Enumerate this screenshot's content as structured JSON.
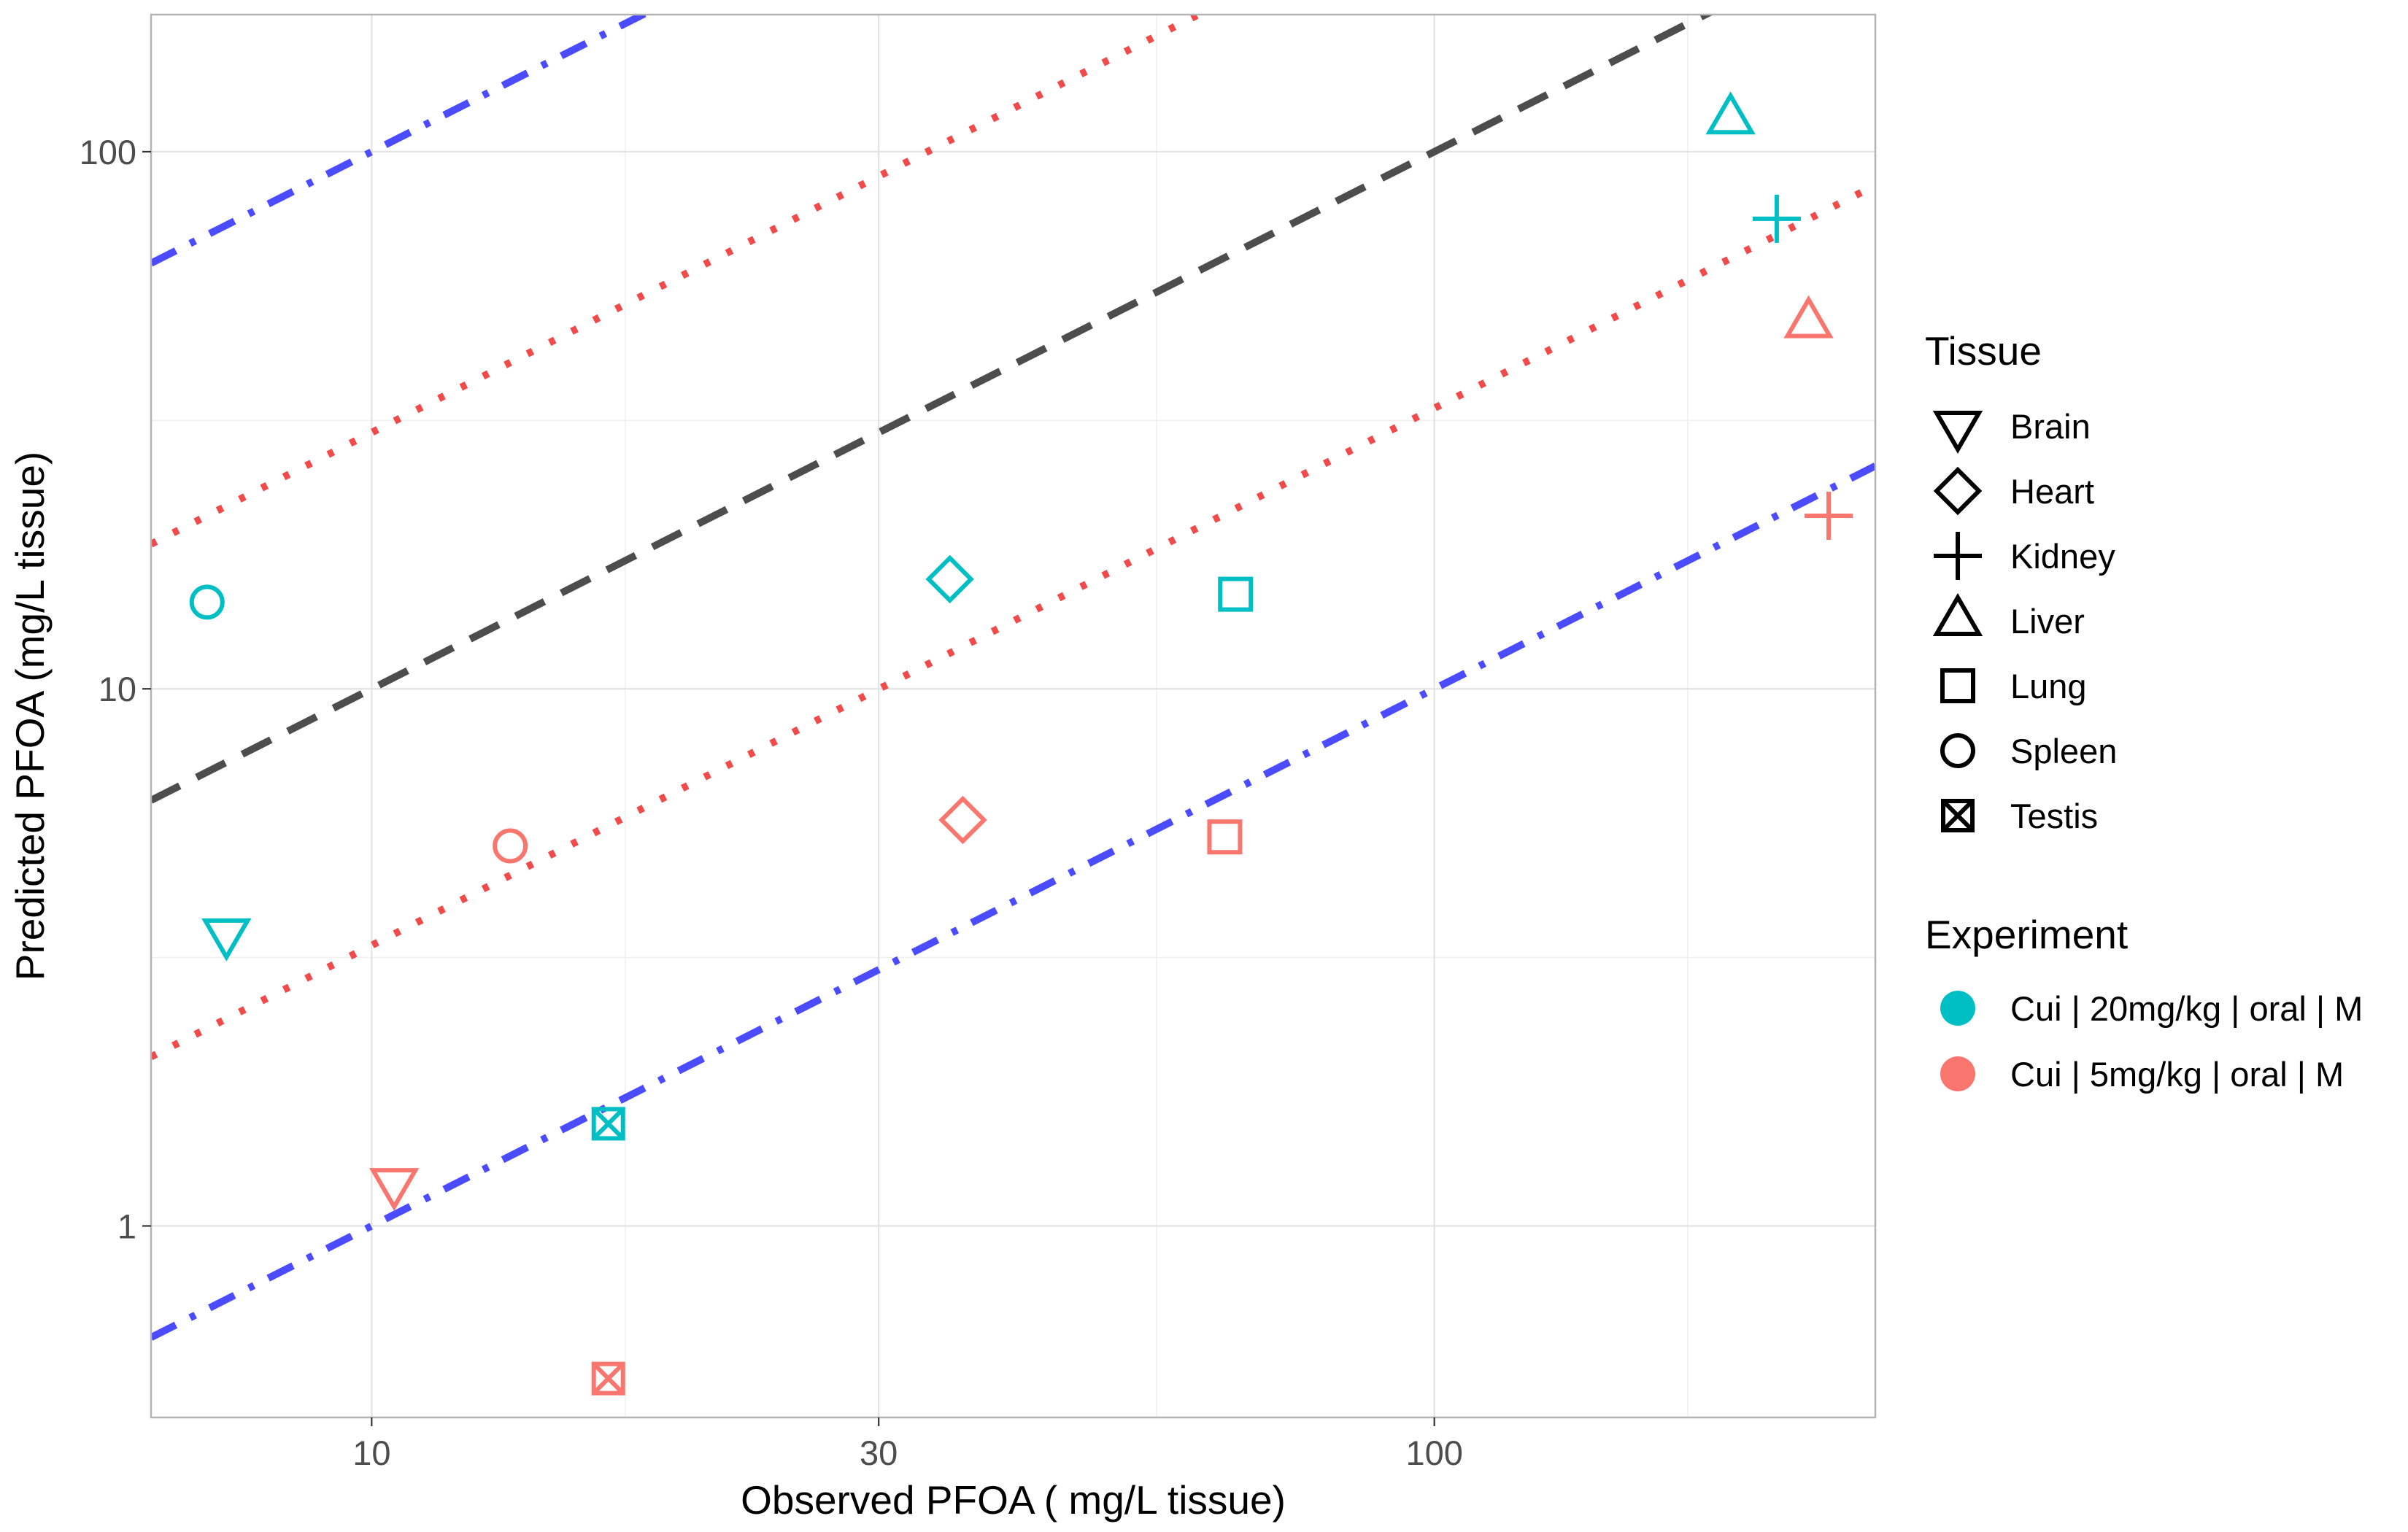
{
  "chart_data": {
    "type": "scatter",
    "xlabel": "Observed PFOA ( mg/L tissue)",
    "ylabel": "Predicted PFOA (mg/L tissue)",
    "x_scale": "log10",
    "y_scale": "log10",
    "xlim": [
      6.2,
      260
    ],
    "ylim": [
      0.44,
      180
    ],
    "x_ticks": [
      10,
      30,
      100
    ],
    "x_tick_labels": [
      "10",
      "30",
      "100"
    ],
    "y_ticks": [
      1,
      10,
      100
    ],
    "y_tick_labels": [
      "1",
      "10",
      "100"
    ],
    "grid": true,
    "reference_lines": [
      {
        "factor": 0.1,
        "style": "dotdash",
        "color": "#4b4bff"
      },
      {
        "factor": 0.333,
        "style": "dotted",
        "color": "#f04a4a"
      },
      {
        "factor": 1,
        "style": "dashed",
        "color": "#4d4d4d"
      },
      {
        "factor": 3,
        "style": "dotted",
        "color": "#f04a4a"
      },
      {
        "factor": 10,
        "style": "dotdash",
        "color": "#4b4bff"
      }
    ],
    "shape_legend": {
      "title": "Tissue",
      "items": [
        {
          "label": "Brain",
          "shape": "triangle-down"
        },
        {
          "label": "Heart",
          "shape": "diamond"
        },
        {
          "label": "Kidney",
          "shape": "plus"
        },
        {
          "label": "Liver",
          "shape": "triangle-up"
        },
        {
          "label": "Lung",
          "shape": "square"
        },
        {
          "label": "Spleen",
          "shape": "circle"
        },
        {
          "label": "Testis",
          "shape": "square-x"
        }
      ]
    },
    "color_legend": {
      "title": "Experiment",
      "items": [
        {
          "label": "Cui | 20mg/kg | oral | M",
          "color": "#00bfc4"
        },
        {
          "label": "Cui | 5mg/kg | oral | M",
          "color": "#f8766d"
        }
      ]
    },
    "series": [
      {
        "name": "Cui | 20mg/kg | oral | M",
        "color": "#00bfc4",
        "points": [
          {
            "tissue": "Brain",
            "x": 7.3,
            "y": 3.5
          },
          {
            "tissue": "Heart",
            "x": 35,
            "y": 16
          },
          {
            "tissue": "Kidney",
            "x": 210,
            "y": 75
          },
          {
            "tissue": "Liver",
            "x": 190,
            "y": 115
          },
          {
            "tissue": "Lung",
            "x": 65,
            "y": 15
          },
          {
            "tissue": "Spleen",
            "x": 7,
            "y": 14.5
          },
          {
            "tissue": "Testis",
            "x": 16.7,
            "y": 1.55
          }
        ]
      },
      {
        "name": "Cui | 5mg/kg | oral | M",
        "color": "#f8766d",
        "points": [
          {
            "tissue": "Brain",
            "x": 10.5,
            "y": 1.2
          },
          {
            "tissue": "Heart",
            "x": 36,
            "y": 5.7
          },
          {
            "tissue": "Kidney",
            "x": 235,
            "y": 21
          },
          {
            "tissue": "Liver",
            "x": 225,
            "y": 48
          },
          {
            "tissue": "Lung",
            "x": 63.5,
            "y": 5.3
          },
          {
            "tissue": "Spleen",
            "x": 13.5,
            "y": 5.1
          },
          {
            "tissue": "Testis",
            "x": 16.7,
            "y": 0.52
          }
        ]
      }
    ]
  }
}
